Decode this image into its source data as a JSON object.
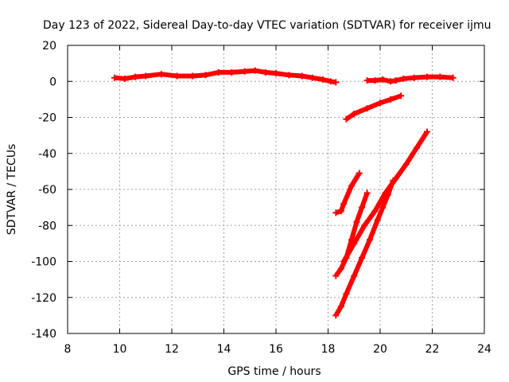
{
  "chart_data": {
    "type": "line",
    "title": "Day 123 of 2022, Sidereal Day-to-day VTEC variation (SDTVAR) for receiver ijmu",
    "xlabel": "GPS time / hours",
    "ylabel": "SDTVAR / TECUs",
    "xlim": [
      8,
      24
    ],
    "ylim": [
      -140,
      20
    ],
    "xticks": [
      8,
      10,
      12,
      14,
      16,
      18,
      20,
      22,
      24
    ],
    "yticks": [
      -140,
      -120,
      -100,
      -80,
      -60,
      -40,
      -20,
      0,
      20
    ],
    "grid": true,
    "color": "#ff0000",
    "series": [
      {
        "x": [
          9.8,
          10.2,
          10.6,
          11.0,
          11.6,
          12.2,
          12.8,
          13.3,
          13.8,
          14.3,
          14.8,
          15.2,
          15.6,
          16.0,
          16.5,
          17.0,
          17.4,
          17.8,
          18.1,
          18.3
        ],
        "y": [
          2,
          1.5,
          2.5,
          3,
          4,
          3,
          3,
          3.5,
          5,
          5,
          5.5,
          6,
          5,
          4.5,
          3.5,
          3,
          2,
          1,
          0,
          -0.5
        ]
      },
      {
        "x": [
          19.5,
          19.8,
          20.1,
          20.4,
          20.6,
          20.9,
          21.3,
          21.8,
          22.3,
          22.8
        ],
        "y": [
          0.5,
          0.5,
          1,
          0,
          0.5,
          1.5,
          2,
          2.5,
          2.5,
          2
        ]
      },
      {
        "x": [
          18.7,
          19.0,
          19.5,
          20.0,
          20.4,
          20.8
        ],
        "y": [
          -21,
          -18,
          -15,
          -12,
          -10,
          -8
        ]
      },
      {
        "x": [
          18.3,
          18.5,
          18.6,
          18.9,
          19.2
        ],
        "y": [
          -73,
          -72,
          -68,
          -58,
          -51
        ]
      },
      {
        "x": [
          18.3,
          18.5,
          18.7,
          18.9,
          19.1,
          19.3,
          19.5
        ],
        "y": [
          -108,
          -104,
          -98,
          -88,
          -78,
          -70,
          -62
        ]
      },
      {
        "x": [
          18.3,
          18.5,
          18.7,
          19.0,
          19.3,
          19.6,
          19.9,
          20.1,
          20.3,
          20.5
        ],
        "y": [
          -130,
          -125,
          -118,
          -108,
          -98,
          -88,
          -77,
          -70,
          -63,
          -55
        ]
      },
      {
        "x": [
          18.6,
          19.0,
          19.4,
          19.8,
          20.2,
          20.6,
          21.0,
          21.4,
          21.8
        ],
        "y": [
          -100,
          -90,
          -80,
          -72,
          -62,
          -54,
          -46,
          -37,
          -28
        ]
      }
    ]
  }
}
